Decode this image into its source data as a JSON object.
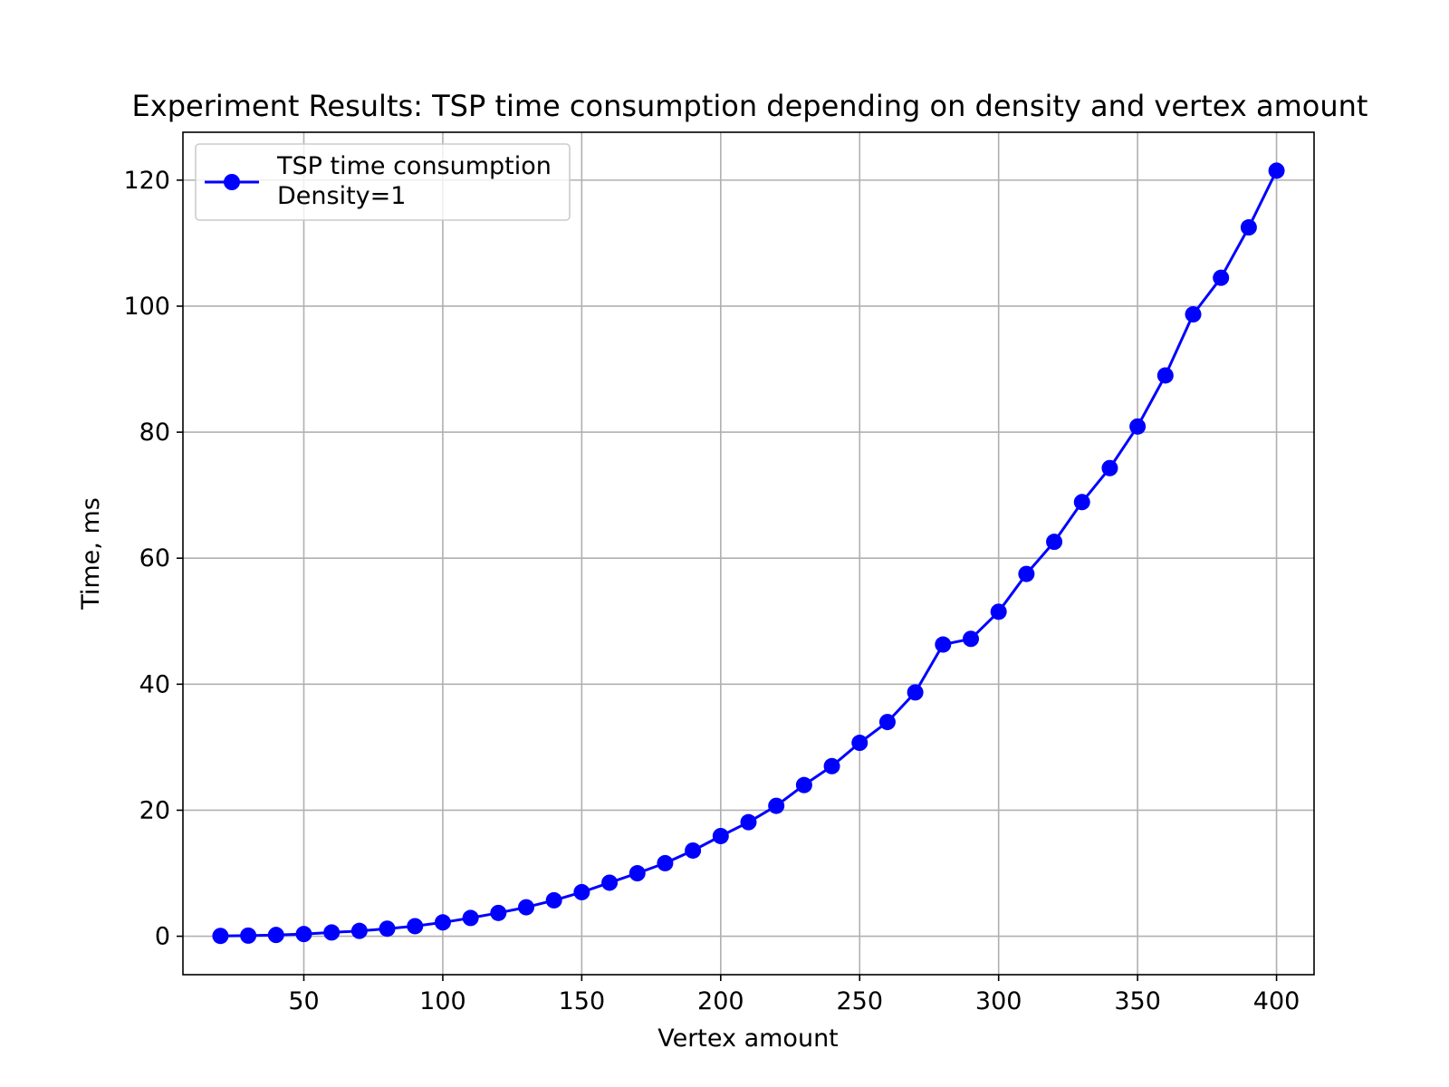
{
  "chart_data": {
    "type": "line",
    "title": "Experiment Results: TSP time consumption depending on density and vertex amount",
    "xlabel": "Vertex amount",
    "ylabel": "Time, ms",
    "xlim": [
      6.5,
      413.5
    ],
    "ylim": [
      -6.1,
      127.6
    ],
    "xticks": [
      50,
      100,
      150,
      200,
      250,
      300,
      350,
      400
    ],
    "yticks": [
      0,
      20,
      40,
      60,
      80,
      100,
      120
    ],
    "grid": true,
    "legend": {
      "position": "top-left",
      "lines": [
        "TSP time consumption",
        "Density=1"
      ]
    },
    "series": [
      {
        "name": "TSP time consumption\nDensity=1",
        "color": "#0000ff",
        "marker": "circle",
        "x": [
          20,
          30,
          40,
          50,
          60,
          70,
          80,
          90,
          100,
          110,
          120,
          130,
          140,
          150,
          160,
          170,
          180,
          190,
          200,
          210,
          220,
          230,
          240,
          250,
          260,
          270,
          280,
          290,
          300,
          310,
          320,
          330,
          340,
          350,
          360,
          370,
          380,
          390,
          400
        ],
        "y": [
          0.05,
          0.1,
          0.2,
          0.35,
          0.6,
          0.85,
          1.2,
          1.6,
          2.2,
          2.9,
          3.7,
          4.6,
          5.7,
          7.0,
          8.5,
          10.0,
          11.6,
          13.6,
          15.9,
          18.1,
          20.7,
          24.0,
          27.0,
          30.7,
          34.0,
          38.7,
          46.3,
          47.2,
          51.5,
          57.5,
          62.6,
          68.9,
          74.3,
          80.9,
          89.0,
          98.7,
          104.5,
          112.5,
          121.5
        ]
      }
    ]
  }
}
